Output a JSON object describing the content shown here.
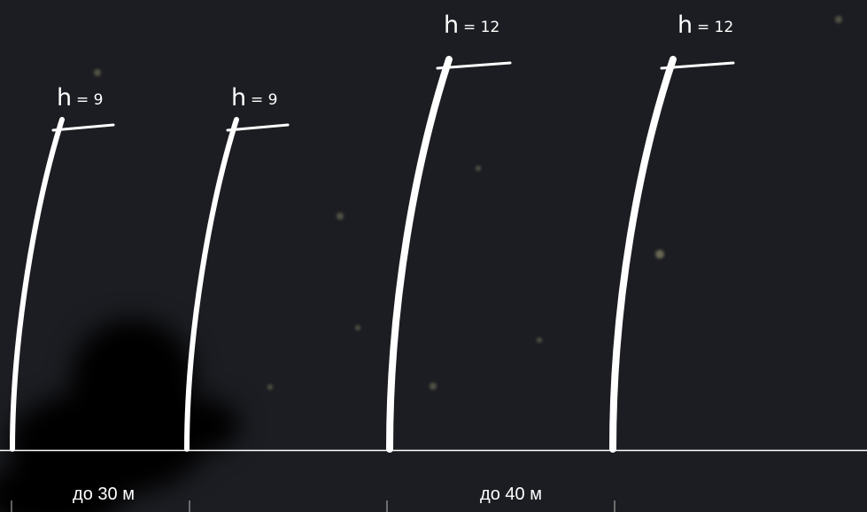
{
  "poles": [
    {
      "symbol": "h",
      "height": "= 9"
    },
    {
      "symbol": "h",
      "height": "= 9"
    },
    {
      "symbol": "h",
      "height": "= 12"
    },
    {
      "symbol": "h",
      "height": "= 12"
    }
  ],
  "spans": [
    {
      "label": "до 30 м"
    },
    {
      "label": "до 40 м"
    }
  ]
}
